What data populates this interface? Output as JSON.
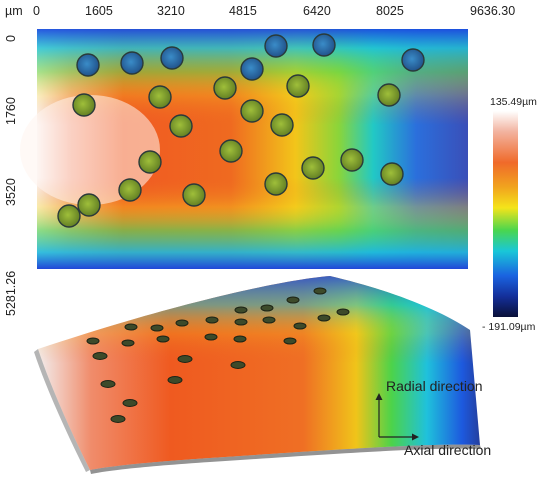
{
  "top_map": {
    "unit_label": "µm",
    "x_ticks": [
      "0",
      "1605",
      "3210",
      "4815",
      "6420",
      "8025",
      "9636.30"
    ],
    "y_ticks": [
      "0",
      "1760",
      "3520",
      "5281.26"
    ]
  },
  "color_scale": {
    "max_label": "135.49µm",
    "min_label": "- 191.09µm",
    "colors": [
      "#ffffff",
      "#f2b3a0",
      "#f06a2a",
      "#f1a41e",
      "#f4e41a",
      "#49d64f",
      "#19c7d8",
      "#1a63e0",
      "#142f9a",
      "#0a1038"
    ]
  },
  "directions": {
    "radial_label": "Radial direction",
    "axial_label": "Axial direction"
  }
}
